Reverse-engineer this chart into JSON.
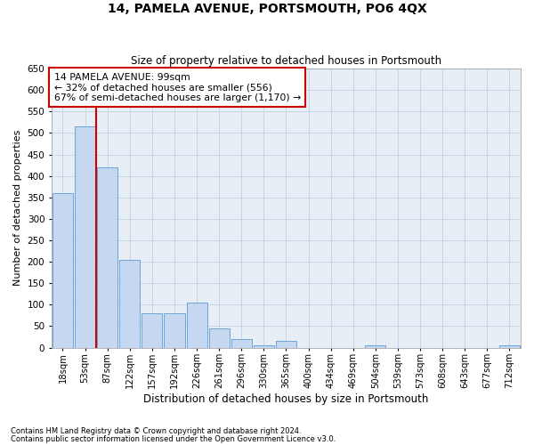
{
  "title": "14, PAMELA AVENUE, PORTSMOUTH, PO6 4QX",
  "subtitle": "Size of property relative to detached houses in Portsmouth",
  "xlabel": "Distribution of detached houses by size in Portsmouth",
  "ylabel": "Number of detached properties",
  "categories": [
    "18sqm",
    "53sqm",
    "87sqm",
    "122sqm",
    "157sqm",
    "192sqm",
    "226sqm",
    "261sqm",
    "296sqm",
    "330sqm",
    "365sqm",
    "400sqm",
    "434sqm",
    "469sqm",
    "504sqm",
    "539sqm",
    "573sqm",
    "608sqm",
    "643sqm",
    "677sqm",
    "712sqm"
  ],
  "values": [
    360,
    515,
    420,
    205,
    80,
    80,
    105,
    45,
    20,
    5,
    15,
    0,
    0,
    0,
    5,
    0,
    0,
    0,
    0,
    0,
    5
  ],
  "bar_color": "#c5d8f0",
  "bar_edge_color": "#5b9bd5",
  "vline_x_index": 2,
  "annotation_line1": "14 PAMELA AVENUE: 99sqm",
  "annotation_line2": "← 32% of detached houses are smaller (556)",
  "annotation_line3": "67% of semi-detached houses are larger (1,170) →",
  "annotation_box_facecolor": "#ffffff",
  "annotation_box_edgecolor": "#cc0000",
  "vline_color": "#cc0000",
  "grid_color": "#c5d5e8",
  "background_color": "#e8eef5",
  "ylim": [
    0,
    650
  ],
  "yticks": [
    0,
    50,
    100,
    150,
    200,
    250,
    300,
    350,
    400,
    450,
    500,
    550,
    600,
    650
  ],
  "footnote1": "Contains HM Land Registry data © Crown copyright and database right 2024.",
  "footnote2": "Contains public sector information licensed under the Open Government Licence v3.0."
}
